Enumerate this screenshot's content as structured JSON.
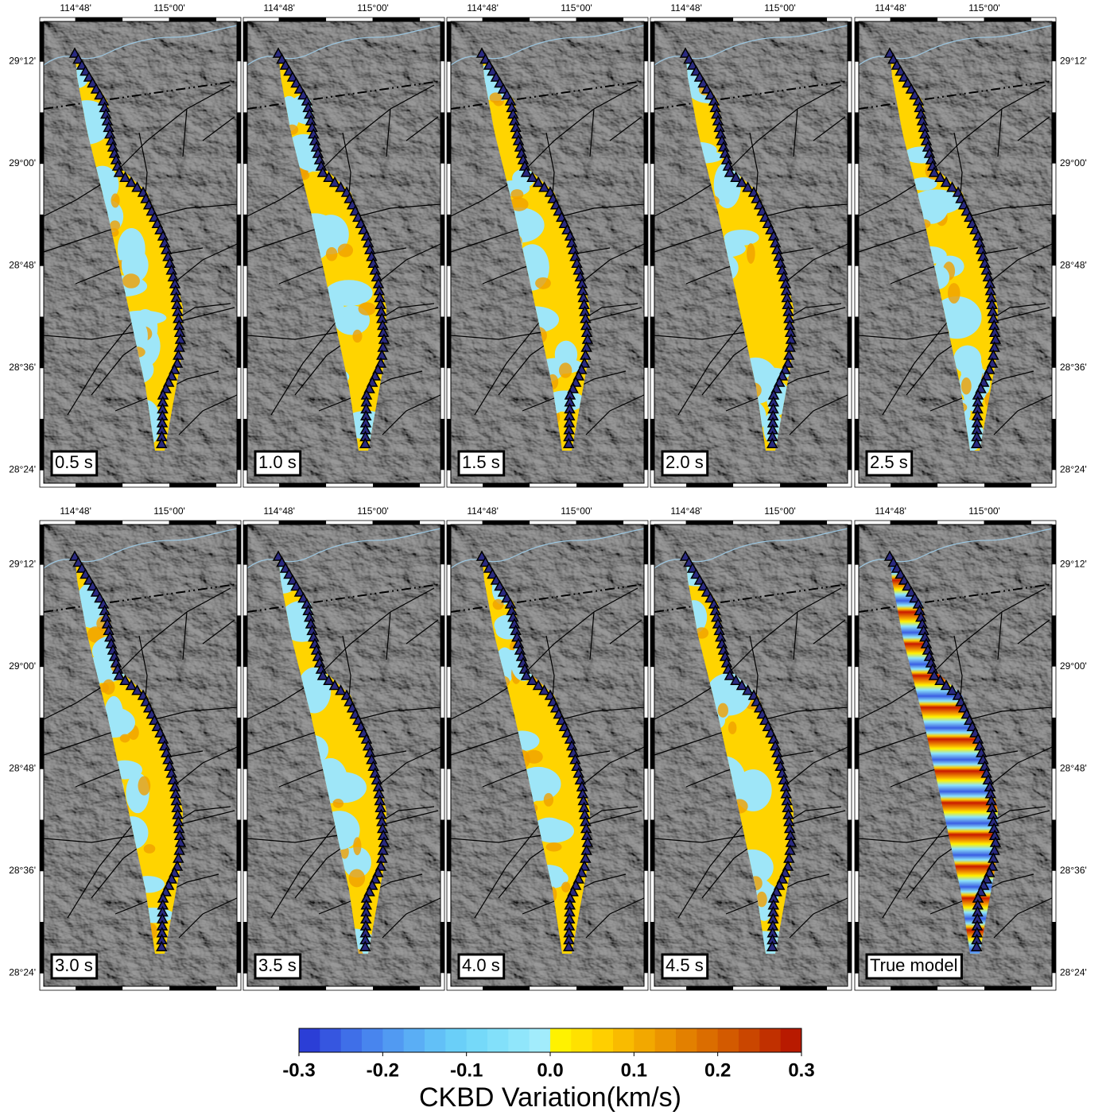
{
  "map": {
    "lon_ticks": [
      {
        "value": 114.8,
        "label": "114°48'"
      },
      {
        "value": 115.0,
        "label": "115°00'"
      }
    ],
    "lat_ticks": [
      {
        "value": 29.2,
        "label": "29°12'"
      },
      {
        "value": 29.0,
        "label": "29°00'"
      },
      {
        "value": 28.8,
        "label": "28°48'"
      },
      {
        "value": 28.6,
        "label": "28°36'"
      },
      {
        "value": 28.4,
        "label": "28°24'"
      }
    ],
    "xlim": [
      114.732,
      115.144
    ],
    "ylim": [
      28.374,
      29.278
    ],
    "panels": [
      "0.5 s",
      "1.0 s",
      "1.5 s",
      "2.0 s",
      "2.5 s",
      "3.0 s",
      "3.5 s",
      "4.0 s",
      "4.5 s",
      "True model"
    ],
    "colorbar": {
      "label": "CKBD Variation(km/s)",
      "vlim": [
        -0.3,
        0.3
      ],
      "ticks": [
        -0.3,
        -0.2,
        -0.1,
        {
          "value": 0,
          "label": "0.0"
        },
        0.1,
        0.2,
        0.3
      ],
      "colors": [
        "#2b3ed6",
        "#3656e0",
        "#3f6fe8",
        "#4885ee",
        "#519af2",
        "#5aaef5",
        "#62c0f7",
        "#6acff8",
        "#75d9f9",
        "#82e0fa",
        "#90e6fb",
        "#a2ecfc",
        "#fff200",
        "#ffe100",
        "#ffcf00",
        "#f9bb00",
        "#f2a800",
        "#eb9400",
        "#e38000",
        "#db6d00",
        "#d35a00",
        "#ca4600",
        "#c13000",
        "#b81a00"
      ]
    }
  }
}
